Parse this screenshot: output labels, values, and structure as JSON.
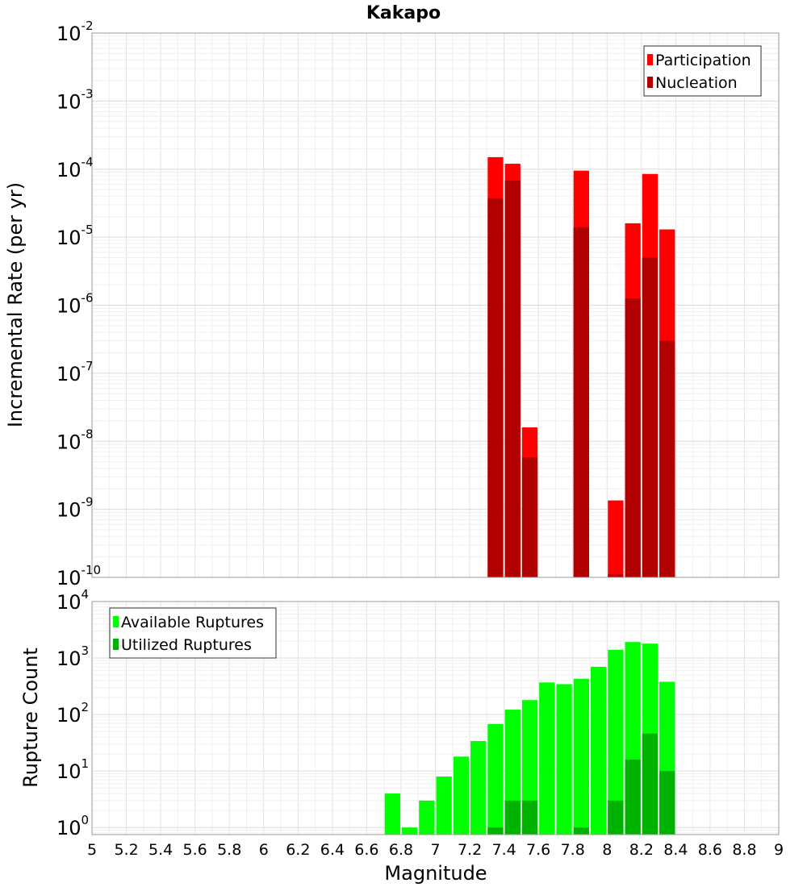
{
  "chart_data": [
    {
      "type": "bar",
      "title": "Kakapo",
      "xlabel": "",
      "ylabel": "Incremental Rate (per yr)",
      "yscale": "log",
      "xlim": [
        5,
        9
      ],
      "ylim": [
        1e-10,
        0.01
      ],
      "y_ticks": [
        {
          "base": "10",
          "exp": "-2"
        },
        {
          "base": "10",
          "exp": "-3"
        },
        {
          "base": "10",
          "exp": "-4"
        },
        {
          "base": "10",
          "exp": "-5"
        },
        {
          "base": "10",
          "exp": "-6"
        },
        {
          "base": "10",
          "exp": "-7"
        },
        {
          "base": "10",
          "exp": "-8"
        },
        {
          "base": "10",
          "exp": "-9"
        },
        {
          "base": "10",
          "exp": "-10"
        }
      ],
      "bar_width": 0.1,
      "legend_position": "top-right",
      "grid": true,
      "series": [
        {
          "name": "Participation",
          "color": "#ff0000",
          "x": [
            7.35,
            7.45,
            7.55,
            7.85,
            8.05,
            8.15,
            8.25,
            8.35
          ],
          "values": [
            0.00015,
            0.00012,
            1.6e-08,
            9.5e-05,
            1.35e-09,
            1.6e-05,
            8.5e-05,
            1.3e-05
          ]
        },
        {
          "name": "Nucleation",
          "color": "#b20000",
          "x": [
            7.35,
            7.45,
            7.55,
            7.85,
            8.05,
            8.15,
            8.25,
            8.35
          ],
          "values": [
            3.7e-05,
            6.8e-05,
            5.8e-09,
            1.4e-05,
            1.1e-10,
            1.25e-06,
            5e-06,
            3e-07
          ]
        }
      ]
    },
    {
      "type": "bar",
      "title": "",
      "xlabel": "Magnitude",
      "ylabel": "Rupture Count",
      "yscale": "log",
      "xlim": [
        5,
        9
      ],
      "ylim": [
        0.75,
        10000.0
      ],
      "x_ticks": [
        "5",
        "5.2",
        "5.4",
        "5.6",
        "5.8",
        "6",
        "6.2",
        "6.4",
        "6.6",
        "6.8",
        "7",
        "7.2",
        "7.4",
        "7.6",
        "7.8",
        "8",
        "8.2",
        "8.4",
        "8.6",
        "8.8",
        "9"
      ],
      "y_ticks": [
        {
          "base": "10",
          "exp": "4"
        },
        {
          "base": "10",
          "exp": "3"
        },
        {
          "base": "10",
          "exp": "2"
        },
        {
          "base": "10",
          "exp": "1"
        },
        {
          "base": "10",
          "exp": "0"
        }
      ],
      "bar_width": 0.1,
      "legend_position": "top-left",
      "grid": true,
      "series": [
        {
          "name": "Available Ruptures",
          "color": "#00ff00",
          "x": [
            6.75,
            6.85,
            6.95,
            7.05,
            7.15,
            7.25,
            7.35,
            7.45,
            7.55,
            7.65,
            7.75,
            7.85,
            7.95,
            8.05,
            8.15,
            8.25,
            8.35
          ],
          "values": [
            4,
            1,
            3,
            8,
            18,
            34,
            68,
            122,
            180,
            370,
            345,
            430,
            700,
            1400,
            1920,
            1800,
            380
          ]
        },
        {
          "name": "Utilized Ruptures",
          "color": "#00b200",
          "x": [
            7.35,
            7.45,
            7.55,
            7.85,
            8.05,
            8.15,
            8.25,
            8.35
          ],
          "values": [
            1,
            3,
            3,
            1,
            3,
            16,
            46,
            10
          ]
        }
      ]
    }
  ]
}
